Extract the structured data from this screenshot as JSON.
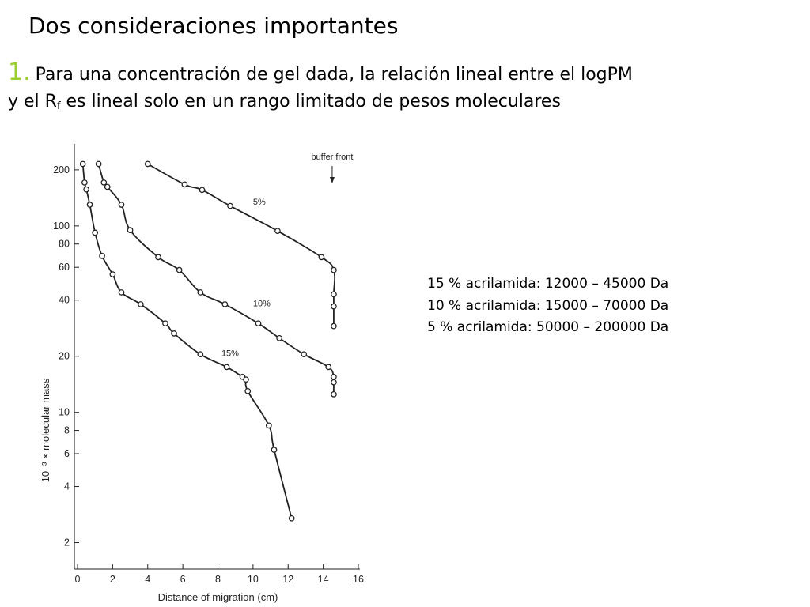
{
  "slide": {
    "title": "Dos consideraciones importantes",
    "point_number": "1.",
    "point_text": "Para una concentración de gel dada, la relación lineal entre el logPM",
    "point_text2_pre": "y el R",
    "point_text2_sub": "f",
    "point_text2_post": " es lineal solo en un rango limitado de pesos moleculares",
    "accent_color": "#9acd32"
  },
  "ranges": [
    "15 % acrilamida: 12000 – 45000 Da",
    "10 % acrilamida: 15000 – 70000 Da",
    "5 % acrilamida: 50000 – 200000 Da"
  ],
  "chart_data": {
    "type": "scatter",
    "xlabel": "Distance of migration (cm)",
    "ylabel": "10⁻³ × molecular mass",
    "xlim": [
      0,
      16
    ],
    "ylim": [
      1.5,
      260
    ],
    "y_scale": "log",
    "x_ticks": [
      0,
      2,
      4,
      6,
      8,
      10,
      12,
      14,
      16
    ],
    "y_ticks": [
      2,
      4,
      6,
      8,
      10,
      20,
      40,
      60,
      80,
      100,
      200
    ],
    "annotation": {
      "text": "buffer front",
      "x": 14.6
    },
    "series": [
      {
        "name": "5%",
        "label_at": {
          "x": 10,
          "y": 130
        },
        "points": [
          [
            4.0,
            215
          ],
          [
            6.1,
            167
          ],
          [
            7.1,
            156
          ],
          [
            8.7,
            128
          ],
          [
            11.4,
            94
          ],
          [
            13.9,
            68
          ],
          [
            14.6,
            58
          ],
          [
            14.6,
            43
          ],
          [
            14.6,
            37
          ],
          [
            14.6,
            29
          ]
        ]
      },
      {
        "name": "10%",
        "label_at": {
          "x": 10.0,
          "y": 37
        },
        "points": [
          [
            1.2,
            215
          ],
          [
            1.5,
            171
          ],
          [
            1.7,
            162
          ],
          [
            2.5,
            130
          ],
          [
            3.0,
            95
          ],
          [
            4.6,
            68
          ],
          [
            5.8,
            58
          ],
          [
            7.0,
            44
          ],
          [
            8.4,
            38
          ],
          [
            10.3,
            30
          ],
          [
            11.5,
            25
          ],
          [
            12.9,
            20.5
          ],
          [
            14.3,
            17.5
          ],
          [
            14.6,
            15.5
          ],
          [
            14.6,
            14.5
          ],
          [
            14.6,
            12.5
          ]
        ]
      },
      {
        "name": "15%",
        "label_at": {
          "x": 8.2,
          "y": 20
        },
        "points": [
          [
            0.3,
            215
          ],
          [
            0.4,
            171
          ],
          [
            0.5,
            157
          ],
          [
            0.7,
            130
          ],
          [
            1.0,
            92
          ],
          [
            1.4,
            69
          ],
          [
            2.0,
            55
          ],
          [
            2.5,
            44
          ],
          [
            3.6,
            38
          ],
          [
            5.0,
            30
          ],
          [
            5.5,
            26.5
          ],
          [
            7.0,
            20.5
          ],
          [
            8.5,
            17.5
          ],
          [
            9.4,
            15.5
          ],
          [
            9.6,
            15
          ],
          [
            9.7,
            13
          ],
          [
            10.9,
            8.5
          ],
          [
            11.2,
            6.3
          ],
          [
            12.2,
            2.7
          ]
        ]
      }
    ]
  }
}
